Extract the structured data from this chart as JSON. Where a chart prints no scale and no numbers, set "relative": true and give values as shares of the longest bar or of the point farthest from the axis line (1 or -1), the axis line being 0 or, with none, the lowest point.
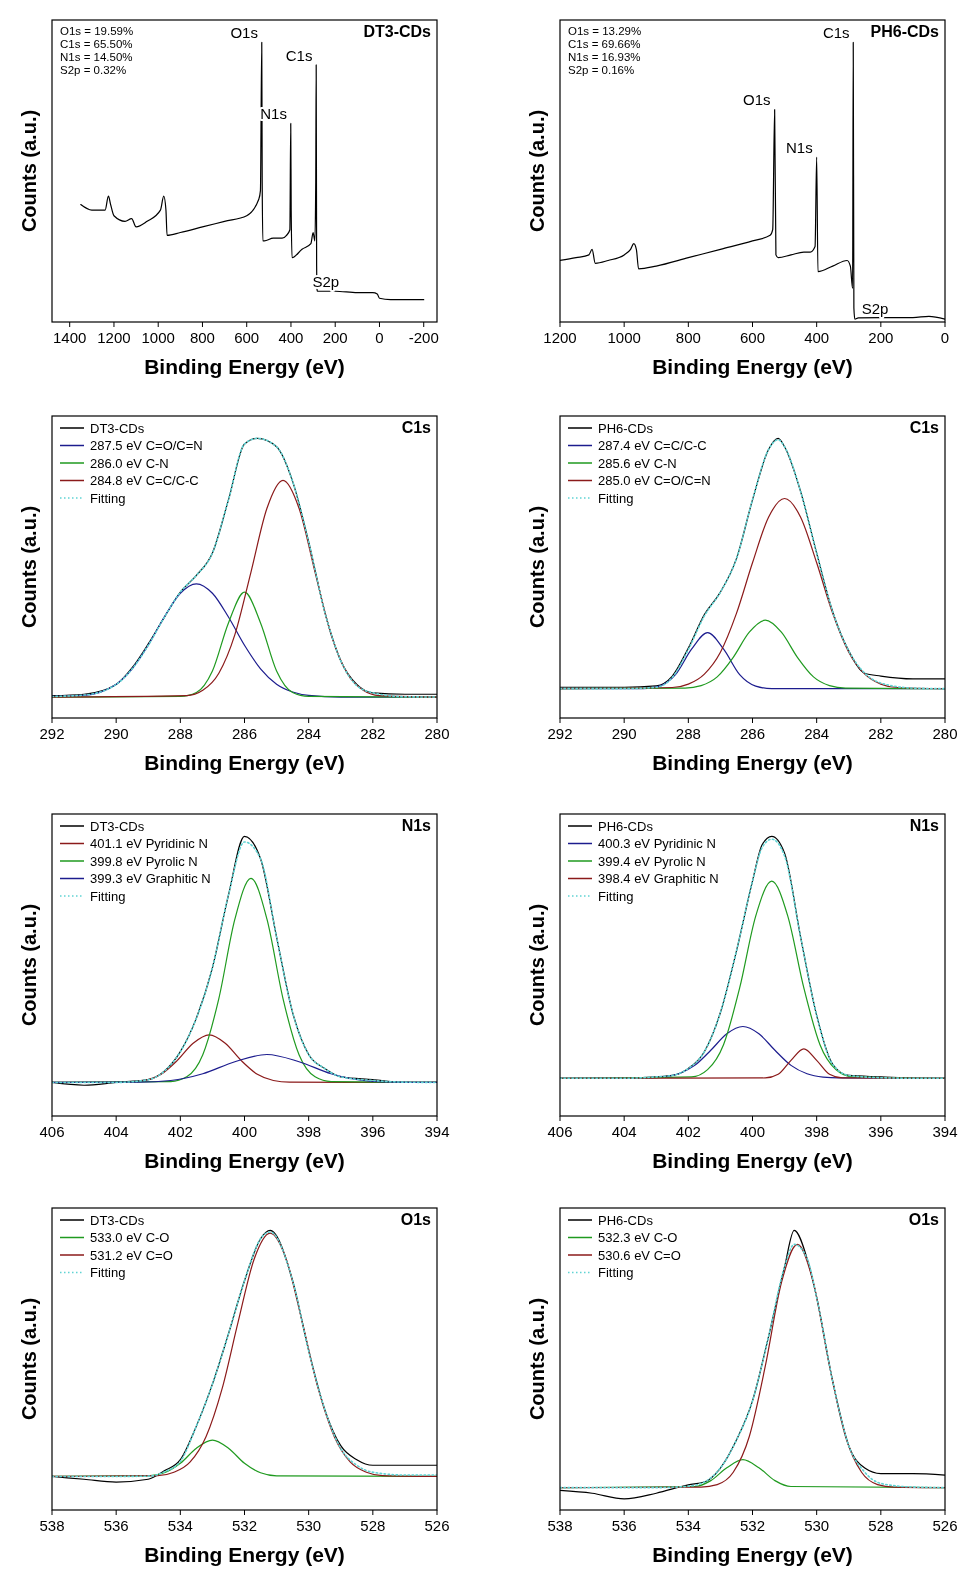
{
  "chart_data": [
    {
      "type": "line",
      "relative": true,
      "title": "DT3-CDs",
      "xlabel": "Binding Energy (eV)",
      "ylabel": "Counts (a.u.)",
      "xlim": [
        1480,
        -260
      ],
      "xticks": [
        1400,
        1200,
        1000,
        800,
        600,
        400,
        200,
        0,
        -200
      ],
      "legend": false,
      "annotations": [
        "O1s = 19.59%",
        "C1s = 65.50%",
        "N1s = 14.50%",
        "S2p = 0.32%",
        {
          "text": "O1s",
          "x": 531,
          "y": 1.0
        },
        {
          "text": "N1s",
          "x": 400,
          "y": 0.71
        },
        {
          "text": "C1s",
          "x": 285,
          "y": 0.92
        },
        {
          "text": "S2p",
          "x": 164,
          "y": 0.11
        }
      ],
      "series": [
        {
          "color": "#000000",
          "x": [
            1350,
            1300,
            1240,
            1225,
            1215,
            1200,
            1150,
            1120,
            1100,
            1050,
            990,
            975,
            965,
            960,
            900,
            800,
            700,
            600,
            545,
            538,
            532,
            530,
            527,
            520,
            480,
            440,
            420,
            405,
            401,
            399,
            395,
            350,
            310,
            300,
            292,
            288,
            286,
            284,
            282,
            280,
            200,
            100,
            30,
            10,
            0,
            -50,
            -200
          ],
          "values": [
            0.42,
            0.4,
            0.4,
            0.45,
            0.42,
            0.38,
            0.36,
            0.37,
            0.34,
            0.36,
            0.4,
            0.45,
            0.4,
            0.31,
            0.32,
            0.34,
            0.36,
            0.38,
            0.44,
            0.47,
            1.0,
            0.5,
            0.29,
            0.29,
            0.3,
            0.3,
            0.31,
            0.33,
            0.71,
            0.4,
            0.23,
            0.26,
            0.28,
            0.32,
            0.29,
            0.5,
            0.92,
            0.2,
            0.115,
            0.11,
            0.11,
            0.105,
            0.105,
            0.1,
            0.085,
            0.08,
            0.08
          ]
        }
      ]
    },
    {
      "type": "line",
      "relative": true,
      "title": "PH6-CDs",
      "xlabel": "Binding Energy (eV)",
      "ylabel": "Counts (a.u.)",
      "xlim": [
        1200,
        0
      ],
      "xticks": [
        1200,
        1000,
        800,
        600,
        400,
        200,
        0
      ],
      "legend": false,
      "annotations": [
        "O1s = 13.29%",
        "C1s = 69.66%",
        "N1s = 16.93%",
        "S2p = 0.16%",
        {
          "text": "O1s",
          "x": 531,
          "y": 0.76
        },
        {
          "text": "N1s",
          "x": 400,
          "y": 0.59
        },
        {
          "text": "C1s",
          "x": 285,
          "y": 1.0
        },
        {
          "text": "S2p",
          "x": 164,
          "y": 0.016
        }
      ],
      "series": [
        {
          "color": "#000000",
          "x": [
            1200,
            1150,
            1110,
            1100,
            1090,
            1050,
            1000,
            980,
            970,
            962,
            955,
            900,
            800,
            700,
            600,
            545,
            537,
            531,
            527,
            520,
            480,
            440,
            420,
            405,
            400,
            396,
            350,
            305,
            295,
            288,
            286,
            284,
            281,
            270,
            200,
            100,
            50,
            0
          ],
          "values": [
            0.22,
            0.23,
            0.24,
            0.26,
            0.21,
            0.22,
            0.24,
            0.26,
            0.28,
            0.26,
            0.19,
            0.2,
            0.23,
            0.26,
            0.29,
            0.31,
            0.33,
            0.76,
            0.24,
            0.23,
            0.24,
            0.25,
            0.25,
            0.27,
            0.59,
            0.18,
            0.2,
            0.22,
            0.2,
            0.12,
            1.0,
            0.05,
            0.01,
            0.015,
            0.016,
            0.016,
            0.02,
            0.01
          ]
        }
      ]
    },
    {
      "type": "line",
      "relative": true,
      "title": "C1s",
      "xlabel": "Binding Energy (eV)",
      "ylabel": "Counts (a.u.)",
      "xlim": [
        292,
        280
      ],
      "xticks": [
        292,
        290,
        288,
        286,
        284,
        282,
        280
      ],
      "legend": "top left",
      "series": [
        {
          "name": "DT3-CDs",
          "color": "#000000",
          "x": [
            292,
            291,
            290,
            289.5,
            289,
            288.5,
            288,
            287.5,
            287,
            286.5,
            286,
            285.6,
            285,
            284.5,
            284,
            283.5,
            283,
            282.5,
            282,
            281,
            280
          ],
          "values": [
            0.08,
            0.085,
            0.12,
            0.18,
            0.265,
            0.36,
            0.45,
            0.51,
            0.59,
            0.78,
            0.98,
            1.0,
            0.97,
            0.846,
            0.63,
            0.38,
            0.205,
            0.12,
            0.09,
            0.085,
            0.085
          ]
        },
        {
          "name": "287.5 eV C=O/C=N",
          "color": "#1c1c8e",
          "x": [
            292,
            291,
            290,
            289.5,
            289,
            288.5,
            288,
            287.5,
            287,
            286.5,
            286,
            285.5,
            285,
            284.5,
            284,
            283,
            280
          ],
          "values": [
            0.077,
            0.081,
            0.121,
            0.176,
            0.26,
            0.361,
            0.446,
            0.48,
            0.446,
            0.361,
            0.26,
            0.176,
            0.121,
            0.093,
            0.081,
            0.075,
            0.075
          ]
        },
        {
          "name": "286.0 eV C-N",
          "color": "#1f9a1f",
          "x": [
            292,
            288,
            287.5,
            287,
            286.5,
            286,
            285.5,
            285,
            284.5,
            284,
            280
          ],
          "values": [
            0.075,
            0.077,
            0.091,
            0.168,
            0.34,
            0.45,
            0.34,
            0.168,
            0.091,
            0.077,
            0.075
          ]
        },
        {
          "name": "284.8 eV C=C/C-C",
          "color": "#8b1a1a",
          "x": [
            292,
            287.8,
            287.3,
            286.8,
            286.3,
            285.8,
            285.3,
            284.8,
            284.3,
            283.8,
            283.3,
            282.8,
            282.3,
            281.8,
            280
          ],
          "values": [
            0.075,
            0.08,
            0.099,
            0.16,
            0.298,
            0.521,
            0.75,
            0.85,
            0.75,
            0.521,
            0.298,
            0.16,
            0.099,
            0.08,
            0.075
          ]
        },
        {
          "name": "Fitting",
          "color": "#5fd3d3",
          "line_style": "dotted",
          "x": [
            292,
            291,
            290,
            289.5,
            289,
            288.5,
            288,
            287.5,
            287,
            286.5,
            286,
            285.6,
            285,
            284.5,
            284,
            283.5,
            283,
            282.5,
            282,
            281,
            280
          ],
          "values": [
            0.077,
            0.082,
            0.12,
            0.176,
            0.26,
            0.36,
            0.45,
            0.51,
            0.59,
            0.78,
            0.98,
            1.0,
            0.97,
            0.846,
            0.63,
            0.38,
            0.205,
            0.116,
            0.09,
            0.076,
            0.075
          ]
        }
      ]
    },
    {
      "type": "line",
      "relative": true,
      "title": "C1s",
      "xlabel": "Binding Energy (eV)",
      "ylabel": "Counts (a.u.)",
      "xlim": [
        292,
        280
      ],
      "xticks": [
        292,
        290,
        288,
        286,
        284,
        282,
        280
      ],
      "legend": "top left",
      "series": [
        {
          "name": "PH6-CDs",
          "color": "#000000",
          "x": [
            292,
            290,
            289,
            288.5,
            288,
            287.5,
            287,
            286.5,
            286,
            285.5,
            285.2,
            285,
            284.5,
            284,
            283.5,
            283,
            282.5,
            282,
            281,
            280
          ],
          "values": [
            0.11,
            0.11,
            0.115,
            0.15,
            0.25,
            0.37,
            0.45,
            0.57,
            0.78,
            0.96,
            1.0,
            0.97,
            0.81,
            0.59,
            0.38,
            0.24,
            0.16,
            0.15,
            0.14,
            0.14
          ]
        },
        {
          "name": "287.4 eV C=C/C-C",
          "color": "#1c1c8e",
          "x": [
            292,
            289.4,
            288.9,
            288.4,
            287.9,
            287.4,
            286.9,
            286.4,
            285.9,
            285.4,
            280
          ],
          "values": [
            0.105,
            0.105,
            0.114,
            0.155,
            0.246,
            0.305,
            0.246,
            0.155,
            0.114,
            0.105,
            0.105
          ]
        },
        {
          "name": "285.6 eV C-N",
          "color": "#1f9a1f",
          "x": [
            292,
            288.1,
            287.6,
            287.1,
            286.6,
            286.1,
            285.6,
            285.1,
            284.6,
            284.1,
            283.6,
            283.1,
            280
          ],
          "values": [
            0.105,
            0.107,
            0.116,
            0.147,
            0.217,
            0.307,
            0.35,
            0.307,
            0.217,
            0.147,
            0.116,
            0.107,
            0.105
          ]
        },
        {
          "name": "285.0 eV C=O/C=N",
          "color": "#8b1a1a",
          "x": [
            292,
            288.5,
            288,
            287.5,
            287,
            286.5,
            286,
            285.5,
            285,
            284.5,
            284,
            283.5,
            283,
            282.5,
            282,
            281.5,
            280
          ],
          "values": [
            0.105,
            0.109,
            0.121,
            0.157,
            0.235,
            0.374,
            0.555,
            0.718,
            0.785,
            0.718,
            0.555,
            0.374,
            0.235,
            0.157,
            0.121,
            0.109,
            0.105
          ]
        },
        {
          "name": "Fitting",
          "color": "#5fd3d3",
          "line_style": "dotted",
          "x": [
            292,
            290,
            289,
            288.5,
            288,
            287.5,
            287,
            286.5,
            286,
            285.5,
            285.2,
            285,
            284.5,
            284,
            283.5,
            283,
            282.5,
            282,
            281,
            280
          ],
          "values": [
            0.105,
            0.105,
            0.11,
            0.145,
            0.245,
            0.365,
            0.45,
            0.57,
            0.78,
            0.96,
            0.995,
            0.97,
            0.81,
            0.59,
            0.38,
            0.24,
            0.16,
            0.125,
            0.107,
            0.105
          ]
        }
      ]
    },
    {
      "type": "line",
      "relative": true,
      "title": "N1s",
      "xlabel": "Binding Energy (eV)",
      "ylabel": "Counts (a.u.)",
      "xlim": [
        406,
        394
      ],
      "xticks": [
        406,
        404,
        402,
        400,
        398,
        396,
        394
      ],
      "legend": "top left",
      "series": [
        {
          "name": "DT3-CDs",
          "color": "#000000",
          "x": [
            406,
            405,
            404,
            403,
            402.5,
            402,
            401.5,
            401,
            400.5,
            400,
            399.5,
            399,
            398.5,
            398,
            397.5,
            397,
            396,
            395,
            394
          ],
          "values": [
            0.12,
            0.11,
            0.12,
            0.13,
            0.16,
            0.23,
            0.35,
            0.53,
            0.79,
            1.0,
            0.92,
            0.64,
            0.37,
            0.22,
            0.17,
            0.14,
            0.13,
            0.12,
            0.12
          ]
        },
        {
          "name": "401.1 eV Pyridinic N",
          "color": "#8b1a1a",
          "x": [
            406,
            403.6,
            403.1,
            402.6,
            402.1,
            401.6,
            401.1,
            400.6,
            400.1,
            399.6,
            399.1,
            398.6,
            394
          ],
          "values": [
            0.12,
            0.121,
            0.127,
            0.149,
            0.198,
            0.26,
            0.29,
            0.26,
            0.198,
            0.149,
            0.127,
            0.121,
            0.12
          ]
        },
        {
          "name": "399.8 eV Pyrolic N",
          "color": "#1f9a1f",
          "x": [
            406,
            402.3,
            401.8,
            401.3,
            400.8,
            400.3,
            399.8,
            399.3,
            398.8,
            398.3,
            397.8,
            397.3,
            394
          ],
          "values": [
            0.12,
            0.123,
            0.14,
            0.219,
            0.42,
            0.704,
            0.85,
            0.704,
            0.42,
            0.219,
            0.14,
            0.123,
            0.12
          ]
        },
        {
          "name": "399.3 eV Graphitic N",
          "color": "#1c1c8e",
          "x": [
            406,
            403.3,
            402.3,
            401.3,
            400.3,
            399.3,
            398.3,
            397.3,
            396.3,
            395.3,
            394
          ],
          "values": [
            0.12,
            0.121,
            0.127,
            0.151,
            0.194,
            0.22,
            0.194,
            0.151,
            0.127,
            0.121,
            0.12
          ]
        },
        {
          "name": "Fitting",
          "color": "#5fd3d3",
          "line_style": "dotted",
          "x": [
            406,
            404,
            403,
            402.5,
            402,
            401.5,
            401,
            400.5,
            400,
            399.5,
            399,
            398.5,
            398,
            397.5,
            397,
            396,
            395,
            394
          ],
          "values": [
            0.12,
            0.12,
            0.13,
            0.16,
            0.23,
            0.35,
            0.53,
            0.79,
            0.98,
            0.92,
            0.64,
            0.37,
            0.22,
            0.17,
            0.14,
            0.127,
            0.121,
            0.12
          ]
        }
      ]
    },
    {
      "type": "line",
      "relative": true,
      "title": "N1s",
      "xlabel": "Binding Energy (eV)",
      "ylabel": "Counts (a.u.)",
      "xlim": [
        406,
        394
      ],
      "xticks": [
        406,
        404,
        402,
        400,
        398,
        396,
        394
      ],
      "legend": "top left",
      "series": [
        {
          "name": "PH6-CDs",
          "color": "#000000",
          "x": [
            406,
            404,
            403,
            402.5,
            402,
            401.5,
            401,
            400.5,
            400,
            399.7,
            399.4,
            399,
            398.5,
            398,
            397.5,
            397,
            396,
            395,
            394
          ],
          "values": [
            0.135,
            0.135,
            0.14,
            0.145,
            0.17,
            0.23,
            0.37,
            0.59,
            0.84,
            0.97,
            1.0,
            0.94,
            0.64,
            0.36,
            0.185,
            0.145,
            0.14,
            0.135,
            0.135
          ]
        },
        {
          "name": "400.3 eV Pyridinic N",
          "color": "#1c1c8e",
          "x": [
            406,
            403.3,
            402.8,
            402.3,
            401.8,
            401.3,
            400.8,
            400.3,
            399.8,
            399.3,
            398.8,
            398.3,
            397.8,
            397.3,
            394
          ],
          "values": [
            0.135,
            0.136,
            0.139,
            0.151,
            0.181,
            0.235,
            0.294,
            0.32,
            0.294,
            0.235,
            0.181,
            0.151,
            0.139,
            0.136,
            0.135
          ]
        },
        {
          "name": "399.4 eV Pyrolic N",
          "color": "#1f9a1f",
          "x": [
            406,
            401.9,
            401.4,
            400.9,
            400.4,
            399.9,
            399.4,
            398.9,
            398.4,
            397.9,
            397.4,
            396.9,
            394
          ],
          "values": [
            0.135,
            0.14,
            0.166,
            0.256,
            0.458,
            0.715,
            0.84,
            0.715,
            0.458,
            0.256,
            0.166,
            0.14,
            0.135
          ]
        },
        {
          "name": "398.4 eV Graphitic N",
          "color": "#8b1a1a",
          "x": [
            406,
            399.6,
            399.2,
            398.8,
            398.4,
            398,
            397.6,
            397.2,
            394
          ],
          "values": [
            0.135,
            0.136,
            0.149,
            0.199,
            0.24,
            0.199,
            0.149,
            0.136,
            0.135
          ]
        },
        {
          "name": "Fitting",
          "color": "#5fd3d3",
          "line_style": "dotted",
          "x": [
            406,
            404,
            403,
            402.5,
            402,
            401.5,
            401,
            400.5,
            400,
            399.7,
            399.4,
            399,
            398.5,
            398,
            397.5,
            397,
            396,
            395,
            394
          ],
          "values": [
            0.135,
            0.135,
            0.14,
            0.145,
            0.17,
            0.23,
            0.37,
            0.59,
            0.84,
            0.96,
            0.99,
            0.93,
            0.64,
            0.36,
            0.185,
            0.145,
            0.137,
            0.135,
            0.135
          ]
        }
      ]
    },
    {
      "type": "line",
      "relative": true,
      "title": "O1s",
      "xlabel": "Binding Energy (eV)",
      "ylabel": "Counts (a.u.)",
      "xlim": [
        538,
        526
      ],
      "xticks": [
        538,
        536,
        534,
        532,
        530,
        528,
        526
      ],
      "legend": "top left",
      "series": [
        {
          "name": "DT3-CDs",
          "color": "#000000",
          "x": [
            538,
            537,
            536,
            535,
            534.5,
            534,
            533.5,
            533,
            532.5,
            532,
            531.5,
            531.2,
            530.5,
            530,
            529.5,
            529,
            528.5,
            528,
            527,
            526
          ],
          "values": [
            0.12,
            0.11,
            0.1,
            0.11,
            0.14,
            0.18,
            0.3,
            0.45,
            0.63,
            0.82,
            0.97,
            1.0,
            0.82,
            0.57,
            0.36,
            0.23,
            0.18,
            0.16,
            0.16,
            0.16
          ]
        },
        {
          "name": "533.0 eV C-O",
          "color": "#1f9a1f",
          "x": [
            538,
            535,
            534.5,
            534,
            533.5,
            533,
            532.5,
            532,
            531.5,
            531,
            526
          ],
          "values": [
            0.12,
            0.122,
            0.133,
            0.167,
            0.221,
            0.25,
            0.221,
            0.167,
            0.133,
            0.122,
            0.12
          ]
        },
        {
          "name": "531.2 eV C=O",
          "color": "#8b1a1a",
          "x": [
            538,
            534.7,
            534.2,
            533.7,
            533.2,
            532.7,
            532.2,
            531.7,
            531.2,
            530.7,
            530.2,
            529.7,
            529.2,
            528.7,
            528.2,
            527.7,
            526
          ],
          "values": [
            0.12,
            0.123,
            0.135,
            0.171,
            0.262,
            0.433,
            0.672,
            0.897,
            0.99,
            0.897,
            0.672,
            0.433,
            0.262,
            0.171,
            0.135,
            0.123,
            0.12
          ]
        },
        {
          "name": "Fitting",
          "color": "#5fd3d3",
          "line_style": "dotted",
          "x": [
            538,
            536,
            535,
            534.5,
            534,
            533.5,
            533,
            532.5,
            532,
            531.5,
            531.2,
            530.5,
            530,
            529.5,
            529,
            528.5,
            528,
            527,
            526
          ],
          "values": [
            0.12,
            0.12,
            0.121,
            0.136,
            0.174,
            0.3,
            0.45,
            0.63,
            0.82,
            0.97,
            0.994,
            0.82,
            0.57,
            0.36,
            0.22,
            0.16,
            0.135,
            0.125,
            0.125
          ]
        }
      ]
    },
    {
      "type": "line",
      "relative": true,
      "title": "O1s",
      "xlabel": "Binding Energy (eV)",
      "ylabel": "Counts (a.u.)",
      "xlim": [
        538,
        526
      ],
      "xticks": [
        538,
        536,
        534,
        532,
        530,
        528,
        526
      ],
      "legend": "top left",
      "series": [
        {
          "name": "PH6-CDs",
          "color": "#000000",
          "x": [
            538,
            537,
            536,
            535,
            534,
            533.5,
            533,
            532.5,
            532,
            531.5,
            531,
            530.7,
            530.3,
            530,
            529.5,
            529,
            528.5,
            528,
            527,
            526
          ],
          "values": [
            0.07,
            0.06,
            0.04,
            0.06,
            0.09,
            0.1,
            0.15,
            0.25,
            0.39,
            0.62,
            0.87,
            1.0,
            0.9,
            0.76,
            0.46,
            0.23,
            0.15,
            0.13,
            0.13,
            0.125
          ]
        },
        {
          "name": "532.3 eV C-O",
          "color": "#1f9a1f",
          "x": [
            538,
            533.8,
            533.3,
            532.8,
            532.3,
            531.8,
            531.3,
            530.8,
            526
          ],
          "values": [
            0.08,
            0.084,
            0.105,
            0.151,
            0.18,
            0.151,
            0.105,
            0.084,
            0.08
          ]
        },
        {
          "name": "530.6 eV C=O",
          "color": "#8b1a1a",
          "x": [
            538,
            533.6,
            533.1,
            532.6,
            532.1,
            531.6,
            531.1,
            530.6,
            530.1,
            529.6,
            529.1,
            528.6,
            528.1,
            527.6,
            526
          ],
          "values": [
            0.08,
            0.082,
            0.091,
            0.135,
            0.263,
            0.515,
            0.812,
            0.95,
            0.812,
            0.515,
            0.263,
            0.135,
            0.091,
            0.082,
            0.08
          ]
        },
        {
          "name": "Fitting",
          "color": "#5fd3d3",
          "line_style": "dotted",
          "x": [
            538,
            535,
            534,
            533.5,
            533,
            532.5,
            532,
            531.5,
            531,
            530.7,
            530.3,
            530,
            529.5,
            529,
            528.5,
            528,
            527,
            526
          ],
          "values": [
            0.08,
            0.08,
            0.085,
            0.1,
            0.15,
            0.25,
            0.39,
            0.62,
            0.87,
            0.95,
            0.9,
            0.76,
            0.46,
            0.23,
            0.135,
            0.095,
            0.082,
            0.08
          ]
        }
      ]
    }
  ]
}
